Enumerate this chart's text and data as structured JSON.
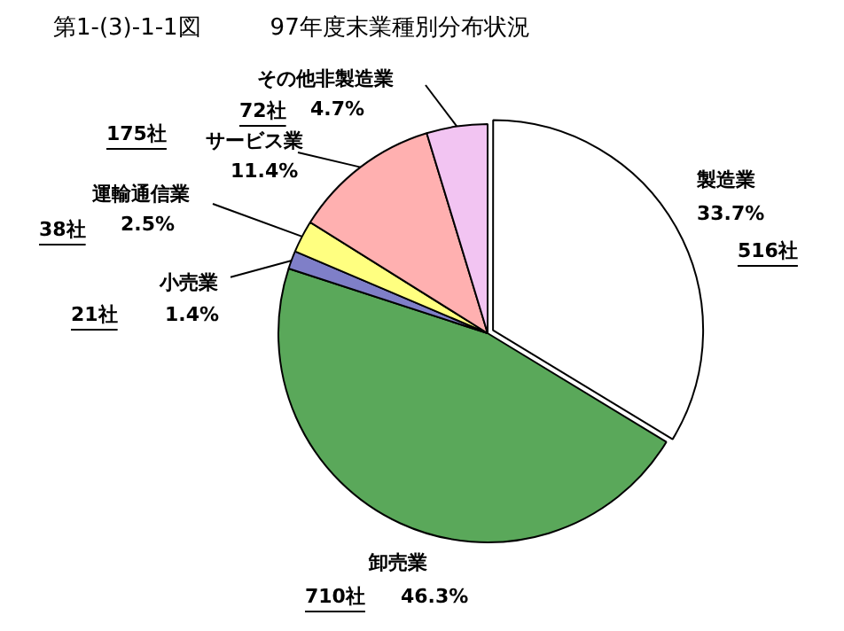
{
  "chart_data": {
    "type": "pie",
    "title": "第1-(3)-1-1図　　　97年度末業種別分布状況",
    "categories": [
      "製造業",
      "卸売業",
      "小売業",
      "運輸通信業",
      "サービス業",
      "その他非製造業"
    ],
    "values": [
      33.7,
      46.3,
      1.4,
      2.5,
      11.4,
      4.7
    ],
    "colors": [
      "#ffffff",
      "#5aa85a",
      "#7f7fc8",
      "#ffff80",
      "#ffb0b0",
      "#f2c4f2"
    ],
    "value_labels": [
      "33.7%",
      "46.3%",
      "1.4%",
      "2.5%",
      "11.4%",
      "4.7%"
    ],
    "annotations": [
      "516社",
      "710社",
      "21社",
      "38社",
      "175社",
      "72社"
    ]
  }
}
